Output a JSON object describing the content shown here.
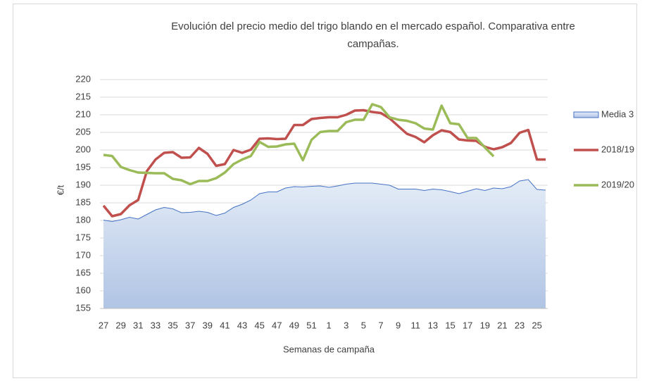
{
  "chart_data": {
    "type": "line",
    "title": "Evolución del precio medio del trigo blando en el mercado español. Comparativa entre campañas.",
    "x_label": "Semanas de campaña",
    "y_label": "€/t",
    "categories": [
      "27",
      null,
      "29",
      null,
      "31",
      null,
      "33",
      null,
      "35",
      null,
      "37",
      null,
      "39",
      null,
      "41",
      null,
      "43",
      null,
      "45",
      null,
      "47",
      null,
      "49",
      null,
      "51",
      null,
      "1",
      null,
      "3",
      null,
      "5",
      null,
      "7",
      null,
      "9",
      null,
      "11",
      null,
      "13",
      null,
      "15",
      null,
      "17",
      null,
      "19",
      null,
      "21",
      null,
      "23",
      null,
      "25",
      null
    ],
    "series": [
      {
        "name": "Media 3",
        "type": "area",
        "color": "#4472c4",
        "values": [
          180.1,
          179.7,
          180.2,
          180.9,
          180.4,
          181.7,
          183.0,
          183.7,
          183.3,
          182.2,
          182.3,
          182.6,
          182.3,
          181.4,
          182.1,
          183.7,
          184.6,
          185.8,
          187.6,
          188.1,
          188.1,
          189.2,
          189.6,
          189.5,
          189.7,
          189.8,
          189.4,
          189.8,
          190.3,
          190.6,
          190.6,
          190.6,
          190.3,
          190.0,
          188.9,
          188.9,
          188.9,
          188.5,
          188.9,
          188.7,
          188.2,
          187.6,
          188.3,
          189.0,
          188.5,
          189.2,
          189.0,
          189.6,
          191.2,
          191.6,
          188.8,
          188.6
        ]
      },
      {
        "name": "2018/19",
        "type": "line",
        "color": "#c0504d",
        "values": [
          184.2,
          181.2,
          181.8,
          184.3,
          185.8,
          194.0,
          197.3,
          199.2,
          199.4,
          197.8,
          197.9,
          200.6,
          198.9,
          195.5,
          196.0,
          200.0,
          199.2,
          200.1,
          203.2,
          203.3,
          203.1,
          203.2,
          207.1,
          207.1,
          208.8,
          209.1,
          209.3,
          209.3,
          210.0,
          211.2,
          211.3,
          210.8,
          210.5,
          209.0,
          206.8,
          204.6,
          203.7,
          202.2,
          204.2,
          205.6,
          205.1,
          203.0,
          202.7,
          202.6,
          200.9,
          200.2,
          200.8,
          202.0,
          204.9,
          205.7,
          197.3,
          197.3
        ]
      },
      {
        "name": "2019/20",
        "type": "line",
        "color": "#9bbb59",
        "values": [
          198.6,
          198.3,
          195.2,
          194.3,
          193.6,
          193.5,
          193.4,
          193.4,
          191.8,
          191.4,
          190.3,
          191.2,
          191.2,
          192.0,
          193.6,
          196.0,
          197.3,
          198.3,
          202.3,
          200.9,
          201.0,
          201.6,
          201.8,
          197.1,
          202.9,
          205.1,
          205.4,
          205.4,
          207.9,
          208.6,
          208.6,
          213.0,
          212.2,
          209.3,
          208.6,
          208.3,
          207.6,
          206.1,
          205.8,
          212.6,
          207.6,
          207.3,
          203.4,
          203.4,
          200.7,
          198.2,
          null,
          null,
          null,
          null,
          null,
          null
        ]
      }
    ],
    "ylim": [
      155,
      220
    ],
    "yticks": [
      155,
      160,
      165,
      170,
      175,
      180,
      185,
      190,
      195,
      200,
      205,
      210,
      215,
      220
    ],
    "grid": true,
    "legend": "right"
  }
}
